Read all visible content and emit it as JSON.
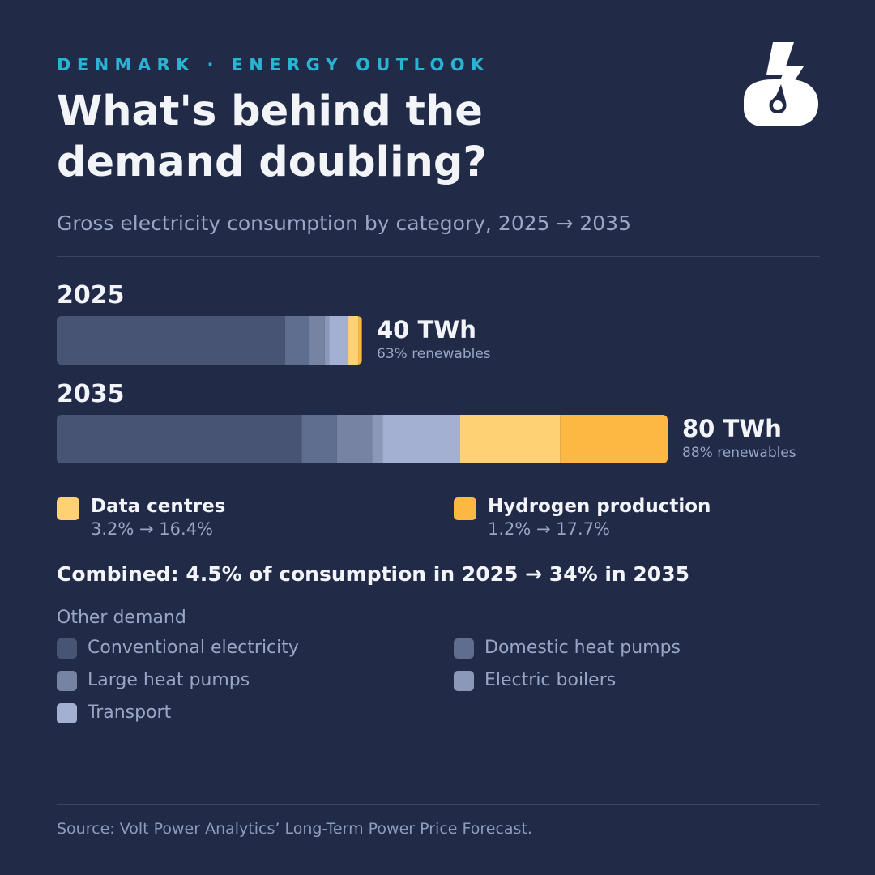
{
  "header": {
    "eyebrow": "DENMARK · ENERGY OUTLOOK",
    "title": "What's behind the demand doubling?",
    "subtitle": "Gross electricity consumption by category, 2025 → 2035"
  },
  "logo": {
    "icon": "lightning-bolt-logo-icon",
    "color": "#ffffff"
  },
  "chart_data": {
    "type": "bar",
    "orientation": "horizontal",
    "stacked": true,
    "unit": "TWh",
    "categories": [
      "2025",
      "2035"
    ],
    "totals": [
      40,
      80
    ],
    "total_labels": [
      "40 TWh",
      "80 TWh"
    ],
    "renewables_labels": [
      "63% renewables",
      "88% renewables"
    ],
    "series": [
      {
        "name": "Conventional electricity",
        "values": [
          29.9,
          32.1
        ],
        "color": "#475473"
      },
      {
        "name": "Domestic heat pumps",
        "values": [
          3.2,
          4.6
        ],
        "color": "#5f6d8e"
      },
      {
        "name": "Large heat pumps",
        "values": [
          2.0,
          4.6
        ],
        "color": "#7683a3"
      },
      {
        "name": "Electric boilers",
        "values": [
          0.6,
          1.4
        ],
        "color": "#8c98b8"
      },
      {
        "name": "Transport",
        "values": [
          2.5,
          10.1
        ],
        "color": "#a3b0d2"
      },
      {
        "name": "Data centres",
        "values": [
          1.28,
          13.12
        ],
        "color": "#ffd175"
      },
      {
        "name": "Hydrogen production",
        "values": [
          0.48,
          14.16
        ],
        "color": "#fdb843"
      }
    ]
  },
  "highlights": [
    {
      "name": "Data centres",
      "change": "3.2% → 16.4%",
      "color": "#ffd175"
    },
    {
      "name": "Hydrogen production",
      "change": "1.2% → 17.7%",
      "color": "#fdb843"
    }
  ],
  "combined": "Combined: 4.5% of consumption in 2025 → 34% in 2035",
  "other_demand": {
    "heading": "Other demand",
    "items": [
      {
        "name": "Conventional electricity",
        "color": "#475473"
      },
      {
        "name": "Domestic heat pumps",
        "color": "#5f6d8e"
      },
      {
        "name": "Large heat pumps",
        "color": "#7683a3"
      },
      {
        "name": "Electric boilers",
        "color": "#8c98b8"
      },
      {
        "name": "Transport",
        "color": "#a3b0d2"
      }
    ]
  },
  "source": "Source: Volt Power Analytics’ Long-Term Power Price Forecast."
}
